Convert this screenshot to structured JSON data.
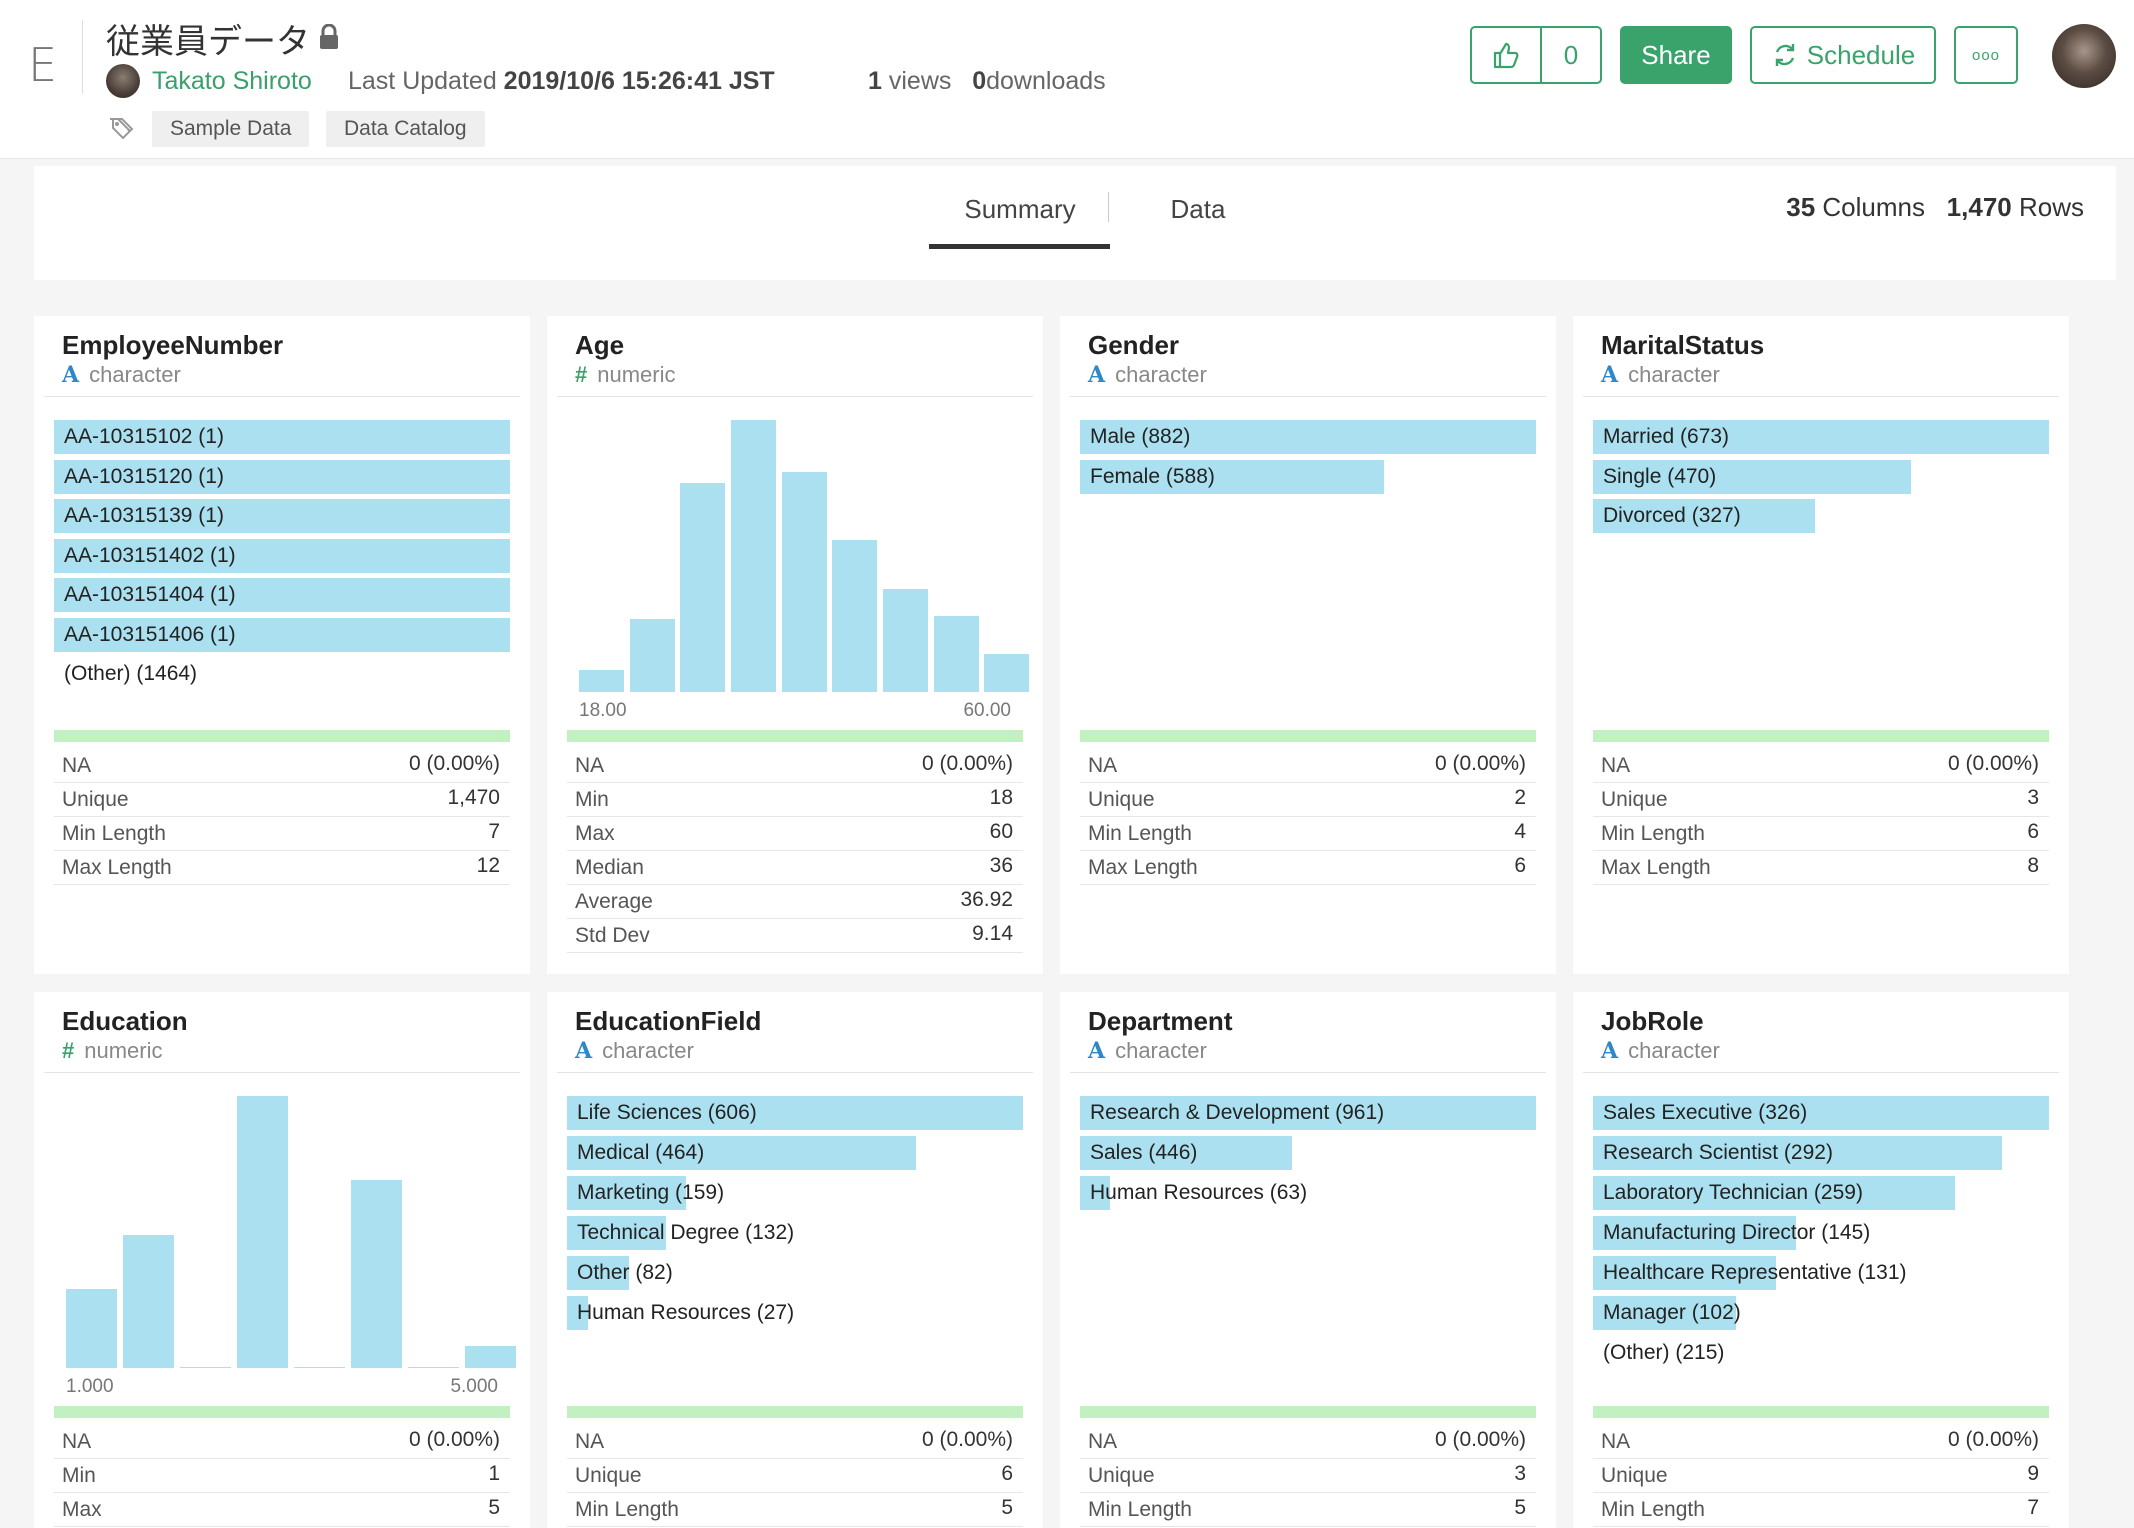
{
  "header": {
    "logo": "E",
    "title": "従業員データ",
    "author": "Takato Shiroto",
    "last_updated_label": "Last Updated",
    "last_updated_value": "2019/10/6 15:26:41 JST",
    "views_count": "1",
    "views_label": "views",
    "downloads_count": "0",
    "downloads_label": "downloads",
    "tags": [
      "Sample Data",
      "Data Catalog"
    ],
    "like_count": "0",
    "share_label": "Share",
    "schedule_label": "Schedule",
    "more_label": "ooo"
  },
  "tabs": {
    "summary": "Summary",
    "data": "Data",
    "columns_count": "35",
    "columns_label": "Columns",
    "rows_count": "1,470",
    "rows_label": "Rows"
  },
  "cards": [
    {
      "name": "EmployeeNumber",
      "type_icon": "A",
      "type": "character",
      "bars": [
        {
          "label": "AA-10315102 (1)",
          "fraction": 1.0
        },
        {
          "label": "AA-10315120 (1)",
          "fraction": 1.0
        },
        {
          "label": "AA-10315139 (1)",
          "fraction": 1.0
        },
        {
          "label": "AA-103151402 (1)",
          "fraction": 1.0
        },
        {
          "label": "AA-103151404 (1)",
          "fraction": 1.0
        },
        {
          "label": "AA-103151406 (1)",
          "fraction": 1.0
        }
      ],
      "other": "(Other) (1464)",
      "stats": [
        {
          "k": "NA",
          "v": "0 (0.00%)"
        },
        {
          "k": "Unique",
          "v": "1,470"
        },
        {
          "k": "Min Length",
          "v": "7"
        },
        {
          "k": "Max Length",
          "v": "12"
        }
      ]
    },
    {
      "name": "Age",
      "type_icon": "#",
      "type": "numeric",
      "histogram": {
        "values": [
          0.08,
          0.27,
          0.77,
          1.0,
          0.81,
          0.56,
          0.38,
          0.28,
          0.14
        ],
        "x_min": "18.00",
        "x_max": "60.00"
      },
      "stats": [
        {
          "k": "NA",
          "v": "0 (0.00%)"
        },
        {
          "k": "Min",
          "v": "18"
        },
        {
          "k": "Max",
          "v": "60"
        },
        {
          "k": "Median",
          "v": "36"
        },
        {
          "k": "Average",
          "v": "36.92"
        },
        {
          "k": "Std Dev",
          "v": "9.14"
        }
      ]
    },
    {
      "name": "Gender",
      "type_icon": "A",
      "type": "character",
      "bars": [
        {
          "label": "Male (882)",
          "fraction": 1.0
        },
        {
          "label": "Female (588)",
          "fraction": 0.667
        }
      ],
      "stats": [
        {
          "k": "NA",
          "v": "0 (0.00%)"
        },
        {
          "k": "Unique",
          "v": "2"
        },
        {
          "k": "Min Length",
          "v": "4"
        },
        {
          "k": "Max Length",
          "v": "6"
        }
      ]
    },
    {
      "name": "MaritalStatus",
      "type_icon": "A",
      "type": "character",
      "bars": [
        {
          "label": "Married (673)",
          "fraction": 1.0
        },
        {
          "label": "Single (470)",
          "fraction": 0.698
        },
        {
          "label": "Divorced (327)",
          "fraction": 0.486
        }
      ],
      "stats": [
        {
          "k": "NA",
          "v": "0 (0.00%)"
        },
        {
          "k": "Unique",
          "v": "3"
        },
        {
          "k": "Min Length",
          "v": "6"
        },
        {
          "k": "Max Length",
          "v": "8"
        }
      ]
    },
    {
      "name": "Education",
      "type_icon": "#",
      "type": "numeric",
      "histogram": {
        "values": [
          0.29,
          0.49,
          0.0,
          1.0,
          0.0,
          0.69,
          0.0,
          0.08
        ],
        "x_min": "1.000",
        "x_max": "5.000"
      },
      "stats": [
        {
          "k": "NA",
          "v": "0 (0.00%)"
        },
        {
          "k": "Min",
          "v": "1"
        },
        {
          "k": "Max",
          "v": "5"
        }
      ]
    },
    {
      "name": "EducationField",
      "type_icon": "A",
      "type": "character",
      "bars": [
        {
          "label": "Life Sciences (606)",
          "fraction": 1.0
        },
        {
          "label": "Medical (464)",
          "fraction": 0.766
        },
        {
          "label": "Marketing (159)",
          "fraction": 0.262
        },
        {
          "label": "Technical Degree (132)",
          "fraction": 0.218
        },
        {
          "label": "Other (82)",
          "fraction": 0.135
        },
        {
          "label": "Human Resources (27)",
          "fraction": 0.045
        }
      ],
      "stats": [
        {
          "k": "NA",
          "v": "0 (0.00%)"
        },
        {
          "k": "Unique",
          "v": "6"
        },
        {
          "k": "Min Length",
          "v": "5"
        }
      ]
    },
    {
      "name": "Department",
      "type_icon": "A",
      "type": "character",
      "bars": [
        {
          "label": "Research & Development (961)",
          "fraction": 1.0
        },
        {
          "label": "Sales (446)",
          "fraction": 0.464
        },
        {
          "label": "Human Resources (63)",
          "fraction": 0.066
        }
      ],
      "stats": [
        {
          "k": "NA",
          "v": "0 (0.00%)"
        },
        {
          "k": "Unique",
          "v": "3"
        },
        {
          "k": "Min Length",
          "v": "5"
        }
      ]
    },
    {
      "name": "JobRole",
      "type_icon": "A",
      "type": "character",
      "bars": [
        {
          "label": "Sales Executive (326)",
          "fraction": 1.0
        },
        {
          "label": "Research Scientist (292)",
          "fraction": 0.896
        },
        {
          "label": "Laboratory Technician (259)",
          "fraction": 0.794
        },
        {
          "label": "Manufacturing Director (145)",
          "fraction": 0.445
        },
        {
          "label": "Healthcare Representative (131)",
          "fraction": 0.402
        },
        {
          "label": "Manager (102)",
          "fraction": 0.313
        }
      ],
      "other": "(Other) (215)",
      "stats": [
        {
          "k": "NA",
          "v": "0 (0.00%)"
        },
        {
          "k": "Unique",
          "v": "9"
        },
        {
          "k": "Min Length",
          "v": "7"
        }
      ]
    }
  ]
}
